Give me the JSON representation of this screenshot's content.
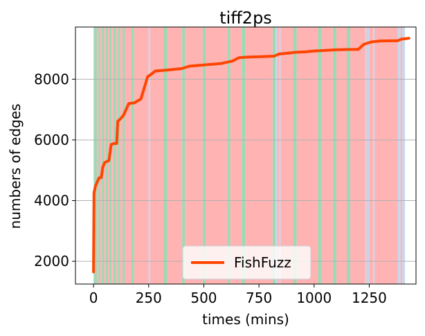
{
  "chart_data": {
    "type": "line",
    "title": "tiff2ps",
    "xlabel": "times (mins)",
    "ylabel": "numbers of edges",
    "xlim": [
      -82,
      1462
    ],
    "ylim": [
      1250,
      9720
    ],
    "xticks": [
      0,
      250,
      500,
      750,
      1000,
      1250
    ],
    "xtick_labels": [
      "0",
      "250",
      "500",
      "750",
      "1000",
      "1250"
    ],
    "yticks": [
      2000,
      4000,
      6000,
      8000
    ],
    "ytick_labels": [
      "2000",
      "4000",
      "6000",
      "8000"
    ],
    "grid": "horizontal",
    "legend": "bottom-center",
    "series": [
      {
        "name": "FishFuzz",
        "color": "#ff4500",
        "x": [
          0,
          2,
          5,
          10,
          25,
          35,
          42,
          50,
          70,
          80,
          92,
          105,
          110,
          120,
          135,
          160,
          185,
          215,
          245,
          255,
          280,
          330,
          400,
          435,
          500,
          580,
          630,
          660,
          700,
          750,
          820,
          840,
          880,
          920,
          960,
          1000,
          1100,
          1160,
          1200,
          1225,
          1260,
          1300,
          1380,
          1395,
          1420,
          1430
        ],
        "y": [
          1650,
          4250,
          4350,
          4500,
          4750,
          4760,
          5100,
          5250,
          5320,
          5850,
          5880,
          5880,
          6620,
          6680,
          6800,
          7200,
          7220,
          7350,
          8080,
          8130,
          8270,
          8300,
          8350,
          8430,
          8470,
          8520,
          8600,
          8710,
          8730,
          8740,
          8760,
          8830,
          8860,
          8890,
          8900,
          8930,
          8970,
          8980,
          8980,
          9150,
          9230,
          9260,
          9270,
          9320,
          9340,
          9350
        ]
      }
    ],
    "band_colors": {
      "red": "#ffb3b3",
      "green": "#9fd8b4",
      "blue": "#c5d9f0",
      "cyan": "#a6dede"
    },
    "bands": [
      {
        "x0": 0,
        "x1": 3,
        "color": "cyan"
      },
      {
        "x0": 3,
        "x1": 15,
        "color": "green"
      },
      {
        "x0": 15,
        "x1": 22,
        "color": "red"
      },
      {
        "x0": 22,
        "x1": 30,
        "color": "green"
      },
      {
        "x0": 30,
        "x1": 38,
        "color": "red"
      },
      {
        "x0": 38,
        "x1": 48,
        "color": "green"
      },
      {
        "x0": 48,
        "x1": 55,
        "color": "red"
      },
      {
        "x0": 55,
        "x1": 64,
        "color": "green"
      },
      {
        "x0": 64,
        "x1": 72,
        "color": "red"
      },
      {
        "x0": 72,
        "x1": 82,
        "color": "green"
      },
      {
        "x0": 82,
        "x1": 90,
        "color": "red"
      },
      {
        "x0": 90,
        "x1": 102,
        "color": "green"
      },
      {
        "x0": 102,
        "x1": 110,
        "color": "red"
      },
      {
        "x0": 110,
        "x1": 120,
        "color": "green"
      },
      {
        "x0": 120,
        "x1": 132,
        "color": "red"
      },
      {
        "x0": 132,
        "x1": 142,
        "color": "green"
      },
      {
        "x0": 142,
        "x1": 172,
        "color": "red"
      },
      {
        "x0": 172,
        "x1": 184,
        "color": "green"
      },
      {
        "x0": 184,
        "x1": 250,
        "color": "red"
      },
      {
        "x0": 250,
        "x1": 257,
        "color": "blue"
      },
      {
        "x0": 257,
        "x1": 318,
        "color": "red"
      },
      {
        "x0": 318,
        "x1": 334,
        "color": "green"
      },
      {
        "x0": 334,
        "x1": 402,
        "color": "red"
      },
      {
        "x0": 402,
        "x1": 416,
        "color": "green"
      },
      {
        "x0": 416,
        "x1": 495,
        "color": "red"
      },
      {
        "x0": 495,
        "x1": 508,
        "color": "green"
      },
      {
        "x0": 508,
        "x1": 606,
        "color": "red"
      },
      {
        "x0": 606,
        "x1": 620,
        "color": "green"
      },
      {
        "x0": 620,
        "x1": 672,
        "color": "red"
      },
      {
        "x0": 672,
        "x1": 688,
        "color": "green"
      },
      {
        "x0": 688,
        "x1": 812,
        "color": "red"
      },
      {
        "x0": 812,
        "x1": 826,
        "color": "green"
      },
      {
        "x0": 826,
        "x1": 833,
        "color": "blue"
      },
      {
        "x0": 833,
        "x1": 842,
        "color": "red"
      },
      {
        "x0": 842,
        "x1": 848,
        "color": "blue"
      },
      {
        "x0": 848,
        "x1": 905,
        "color": "red"
      },
      {
        "x0": 905,
        "x1": 921,
        "color": "green"
      },
      {
        "x0": 921,
        "x1": 1018,
        "color": "red"
      },
      {
        "x0": 1018,
        "x1": 1034,
        "color": "green"
      },
      {
        "x0": 1034,
        "x1": 1085,
        "color": "red"
      },
      {
        "x0": 1085,
        "x1": 1101,
        "color": "green"
      },
      {
        "x0": 1101,
        "x1": 1148,
        "color": "red"
      },
      {
        "x0": 1148,
        "x1": 1164,
        "color": "green"
      },
      {
        "x0": 1164,
        "x1": 1232,
        "color": "red"
      },
      {
        "x0": 1232,
        "x1": 1238,
        "color": "blue"
      },
      {
        "x0": 1238,
        "x1": 1242,
        "color": "red"
      },
      {
        "x0": 1242,
        "x1": 1250,
        "color": "blue"
      },
      {
        "x0": 1250,
        "x1": 1268,
        "color": "red"
      },
      {
        "x0": 1268,
        "x1": 1274,
        "color": "blue"
      },
      {
        "x0": 1274,
        "x1": 1380,
        "color": "red"
      },
      {
        "x0": 1380,
        "x1": 1392,
        "color": "blue"
      },
      {
        "x0": 1392,
        "x1": 1400,
        "color": "red"
      },
      {
        "x0": 1400,
        "x1": 1412,
        "color": "blue"
      }
    ]
  }
}
